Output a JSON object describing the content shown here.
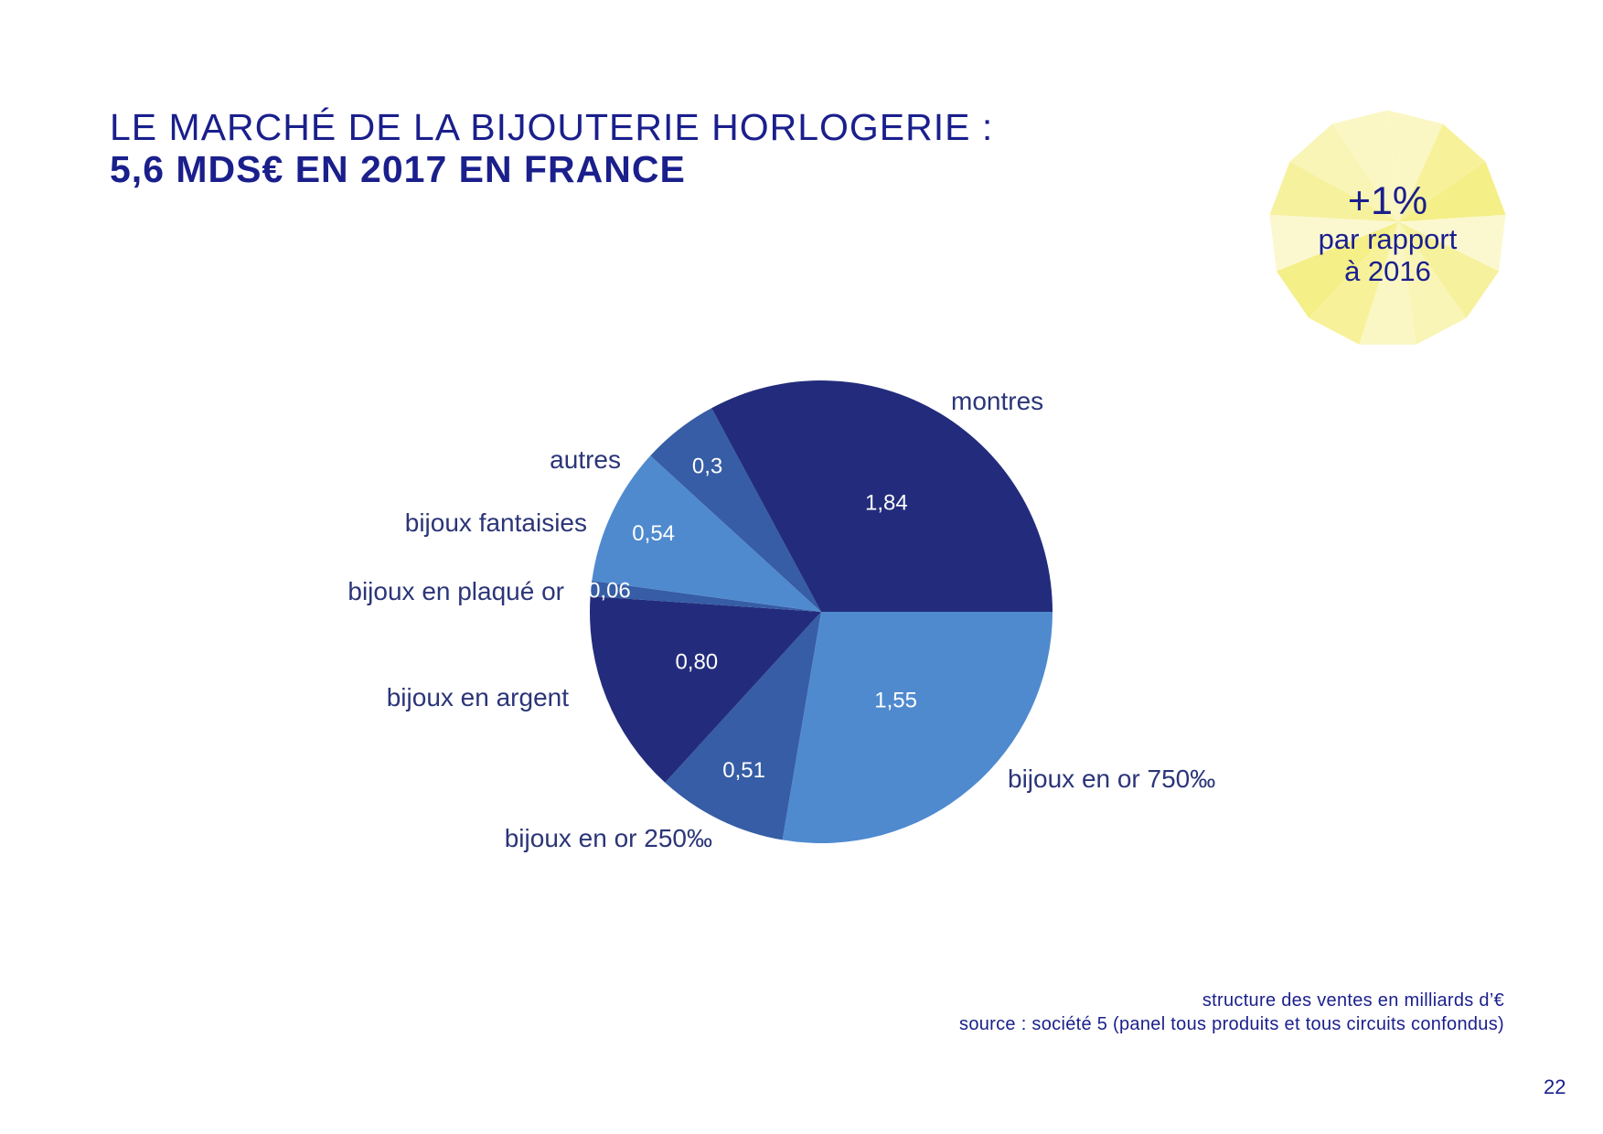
{
  "header": {
    "title_line1": "LE MARCHÉ DE LA BIJOUTERIE HORLOGERIE :",
    "title_line2": "5,6 MDS€ EN 2017 EN FRANCE"
  },
  "badge": {
    "value": "+1%",
    "line1": "par rapport",
    "line2": "à 2016",
    "colors": [
      "#fbf7c4",
      "#f7f29a",
      "#f4ef86",
      "#fbf8d0",
      "#f6f19c",
      "#f9f5b6"
    ]
  },
  "chart_data": {
    "type": "pie",
    "title": "",
    "start_angle_deg": 0,
    "direction": "clockwise",
    "slices": [
      {
        "label": "bijoux en or 750‰",
        "value": 1.55,
        "value_label": "1,55",
        "color": "#4f8acf"
      },
      {
        "label": "bijoux en or 250‰",
        "value": 0.51,
        "value_label": "0,51",
        "color": "#365da5"
      },
      {
        "label": "bijoux en argent",
        "value": 0.8,
        "value_label": "0,80",
        "color": "#232c7c"
      },
      {
        "label": "bijoux en plaqué or",
        "value": 0.06,
        "value_label": "0,06",
        "color": "#365da5"
      },
      {
        "label": "bijoux fantaisies",
        "value": 0.54,
        "value_label": "0,54",
        "color": "#4f8acf"
      },
      {
        "label": "autres",
        "value": 0.3,
        "value_label": "0,3",
        "color": "#365da5"
      },
      {
        "label": "montres",
        "value": 1.84,
        "value_label": "1,84",
        "color": "#232c7c"
      }
    ]
  },
  "footer": {
    "note": "structure des ventes en milliards d’€",
    "source": "source : société 5 (panel tous produits et tous circuits confondus)",
    "page": "22"
  }
}
